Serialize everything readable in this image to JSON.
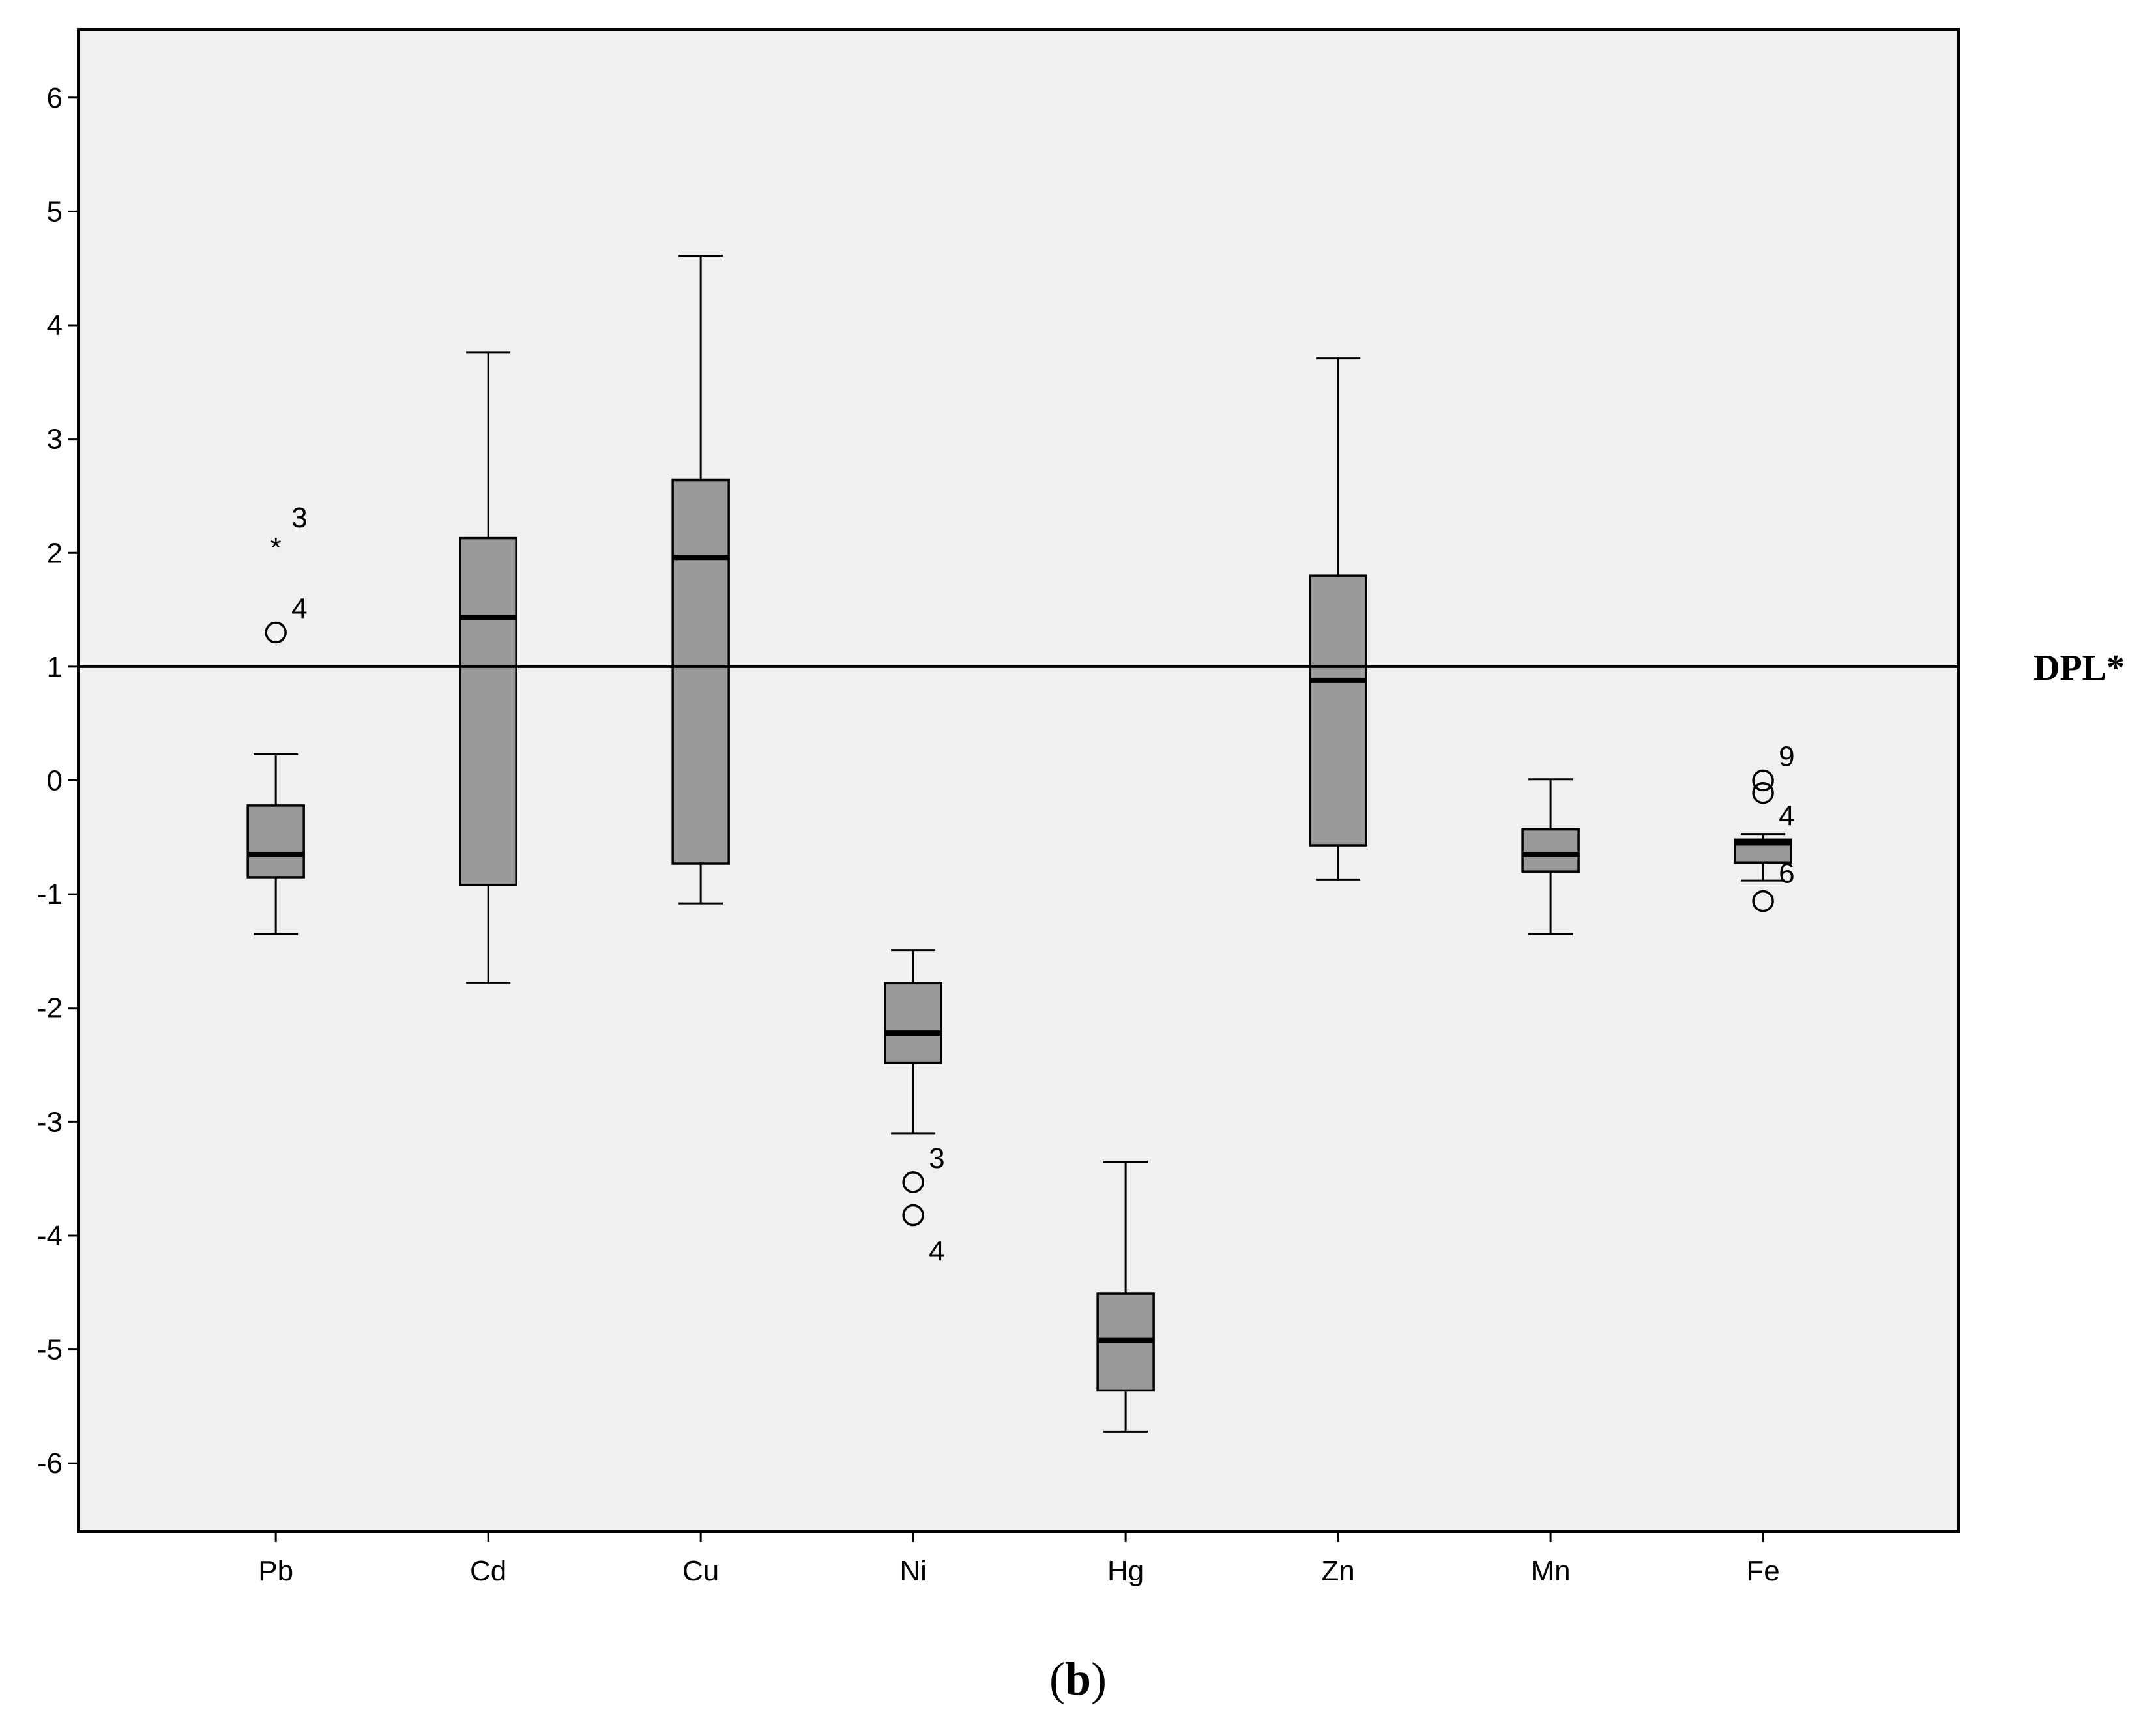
{
  "chart_data": {
    "type": "boxplot",
    "categories": [
      "Pb",
      "Cd",
      "Cu",
      "Ni",
      "Hg",
      "Zn",
      "Mn",
      "Fe"
    ],
    "ylim": [
      -6.6,
      6.6
    ],
    "yticks": [
      6,
      5,
      4,
      3,
      2,
      1,
      0,
      -1,
      -2,
      -3,
      -4,
      -5,
      -6
    ],
    "ytick_labels": [
      "6",
      "5",
      "4",
      "3",
      "2",
      "1",
      "0",
      "-1",
      "-2",
      "-3",
      "-4",
      "-5",
      "-6"
    ],
    "colors": {
      "plot_bg": "#f0f0f0",
      "box_fill": "#999999",
      "stroke": "#000000"
    },
    "grid": false,
    "boxes": [
      {
        "name": "Pb",
        "whisker_low": -1.35,
        "q1": -0.85,
        "median": -0.65,
        "q3": -0.22,
        "whisker_high": 0.23
      },
      {
        "name": "Cd",
        "whisker_low": -1.78,
        "q1": -0.92,
        "median": 1.43,
        "q3": 2.13,
        "whisker_high": 3.76
      },
      {
        "name": "Cu",
        "whisker_low": -1.08,
        "q1": -0.73,
        "median": 1.96,
        "q3": 2.64,
        "whisker_high": 4.61
      },
      {
        "name": "Ni",
        "whisker_low": -3.1,
        "q1": -2.48,
        "median": -2.22,
        "q3": -1.78,
        "whisker_high": -1.49
      },
      {
        "name": "Hg",
        "whisker_low": -5.72,
        "q1": -5.36,
        "median": -4.92,
        "q3": -4.51,
        "whisker_high": -3.35
      },
      {
        "name": "Zn",
        "whisker_low": -0.87,
        "q1": -0.57,
        "median": 0.88,
        "q3": 1.8,
        "whisker_high": 3.71
      },
      {
        "name": "Mn",
        "whisker_low": -1.35,
        "q1": -0.8,
        "median": -0.65,
        "q3": -0.43,
        "whisker_high": 0.01
      },
      {
        "name": "Fe",
        "whisker_low": -0.88,
        "q1": -0.72,
        "median": -0.55,
        "q3": -0.52,
        "whisker_high": -0.47
      }
    ],
    "outliers": [
      {
        "category": "Pb",
        "value": 2.1,
        "marker": "*",
        "label": "3",
        "label_pos": "up-right"
      },
      {
        "category": "Pb",
        "value": 1.3,
        "marker": "o",
        "label": "4",
        "label_pos": "up-right"
      },
      {
        "category": "Ni",
        "value": -3.53,
        "marker": "o",
        "label": "3",
        "label_pos": "up-right"
      },
      {
        "category": "Ni",
        "value": -3.82,
        "marker": "o",
        "label": "4",
        "label_pos": "down-right"
      },
      {
        "category": "Fe",
        "value": 0.0,
        "marker": "o",
        "label": "9",
        "label_pos": "up-right"
      },
      {
        "category": "Fe",
        "value": -0.11,
        "marker": "o",
        "label": "",
        "label_pos": ""
      },
      {
        "category": "Fe",
        "value": -0.52,
        "marker": "",
        "label": "4",
        "label_pos": "up-right"
      },
      {
        "category": "Fe",
        "value": -0.82,
        "marker": "",
        "label": "6",
        "label_pos": "right"
      },
      {
        "category": "Fe",
        "value": -1.06,
        "marker": "o",
        "label": "",
        "label_pos": ""
      }
    ],
    "reference_line": {
      "value": 1,
      "label": "DPL*"
    },
    "panel_label": {
      "open": "(",
      "bold": "b",
      "close": ")"
    }
  }
}
